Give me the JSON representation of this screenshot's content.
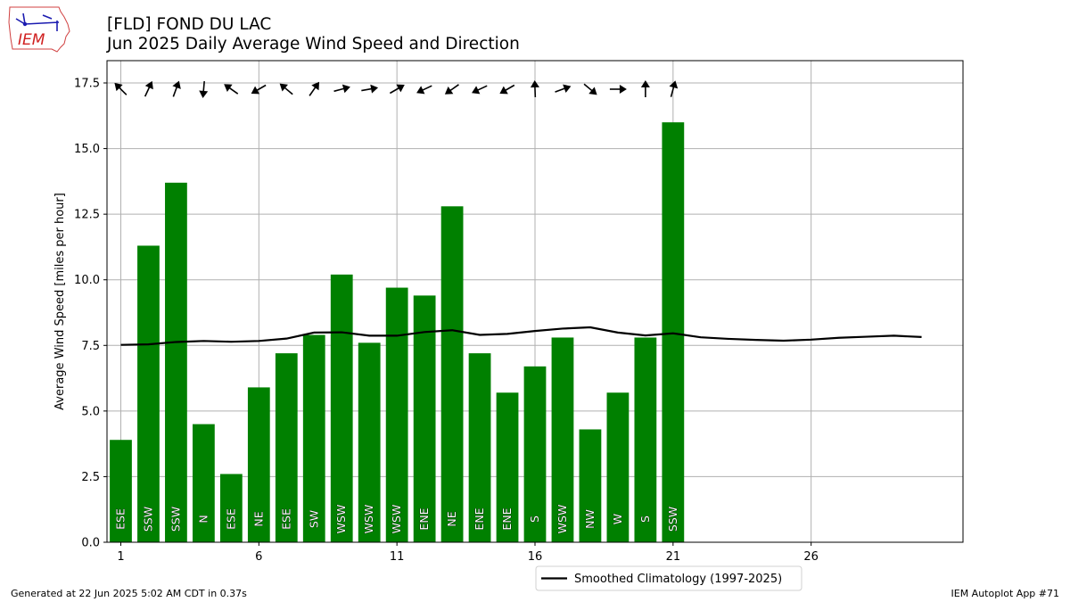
{
  "header": {
    "logo_text": "IEM",
    "title_line1": "[FLD] FOND DU LAC",
    "title_line2": "Jun 2025 Daily Average Wind Speed and Direction"
  },
  "footer": {
    "generated": "Generated at 22 Jun 2025 5:02 AM CDT in 0.37s",
    "app": "IEM Autoplot App #71"
  },
  "colors": {
    "bar": "#008000",
    "climatology": "#000000",
    "grid": "#b0b0b0"
  },
  "chart_data": {
    "type": "bar",
    "title": "[FLD] FOND DU LAC Jun 2025 Daily Average Wind Speed and Direction",
    "xlabel": "",
    "ylabel": "Average Wind Speed [miles per hour]",
    "xlim": [
      0.5,
      31.5
    ],
    "ylim": [
      0,
      18.35
    ],
    "xticks": [
      1,
      6,
      11,
      16,
      21,
      26
    ],
    "yticks": [
      "0.0",
      "2.5",
      "5.0",
      "7.5",
      "10.0",
      "12.5",
      "15.0",
      "17.5"
    ],
    "grid": true,
    "legend_position": "bottom-center-outside",
    "days": [
      1,
      2,
      3,
      4,
      5,
      6,
      7,
      8,
      9,
      10,
      11,
      12,
      13,
      14,
      15,
      16,
      17,
      18,
      19,
      20,
      21
    ],
    "values": [
      3.9,
      11.3,
      13.7,
      4.5,
      2.6,
      5.9,
      7.2,
      7.9,
      10.2,
      7.6,
      9.7,
      9.4,
      12.8,
      7.2,
      5.7,
      6.7,
      7.8,
      4.3,
      5.7,
      7.8,
      16.0
    ],
    "directions": [
      "ESE",
      "SSW",
      "SSW",
      "N",
      "ESE",
      "NE",
      "ESE",
      "SW",
      "WSW",
      "WSW",
      "WSW",
      "ENE",
      "NE",
      "ENE",
      "ENE",
      "S",
      "WSW",
      "NW",
      "W",
      "S",
      "SSW"
    ],
    "arrow_angles_deg": [
      135,
      65,
      70,
      265,
      145,
      210,
      140,
      55,
      15,
      10,
      30,
      205,
      215,
      205,
      210,
      92,
      20,
      320,
      0,
      90,
      75
    ],
    "series": [
      {
        "name": "Smoothed Climatology (1997-2025)",
        "x": [
          1,
          2,
          3,
          4,
          5,
          6,
          7,
          8,
          9,
          10,
          11,
          12,
          13,
          14,
          15,
          16,
          17,
          18,
          19,
          20,
          21,
          22,
          23,
          24,
          25,
          26,
          27,
          28,
          29,
          30
        ],
        "values": [
          7.52,
          7.54,
          7.63,
          7.67,
          7.64,
          7.67,
          7.76,
          7.99,
          8.0,
          7.87,
          7.87,
          8.01,
          8.08,
          7.9,
          7.94,
          8.05,
          8.14,
          8.19,
          7.99,
          7.88,
          7.96,
          7.81,
          7.75,
          7.71,
          7.68,
          7.72,
          7.79,
          7.83,
          7.87,
          7.82
        ]
      }
    ]
  }
}
